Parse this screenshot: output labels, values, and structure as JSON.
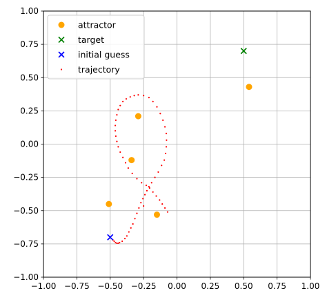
{
  "chart_data": {
    "type": "scatter",
    "title": "",
    "xlabel": "",
    "ylabel": "",
    "xlim": [
      -1.0,
      1.0
    ],
    "ylim": [
      -1.0,
      1.0
    ],
    "xticks": [
      -1.0,
      -0.75,
      -0.5,
      -0.25,
      0.0,
      0.25,
      0.5,
      0.75,
      1.0
    ],
    "yticks": [
      -1.0,
      -0.75,
      -0.5,
      -0.25,
      0.0,
      0.25,
      0.5,
      0.75,
      1.0
    ],
    "xtick_labels": [
      "−1.00",
      "−0.75",
      "−0.50",
      "−0.25",
      "0.00",
      "0.25",
      "0.50",
      "0.75",
      "1.00"
    ],
    "ytick_labels": [
      "−1.00",
      "−0.75",
      "−0.50",
      "−0.25",
      "0.00",
      "0.25",
      "0.50",
      "0.75",
      "1.00"
    ],
    "grid": true,
    "legend_position": "top-left",
    "series": [
      {
        "name": "attractor",
        "marker": "circle",
        "color": "#FFA500",
        "points": [
          [
            -0.29,
            0.21
          ],
          [
            -0.34,
            -0.12
          ],
          [
            -0.51,
            -0.45
          ],
          [
            -0.15,
            -0.53
          ],
          [
            0.54,
            0.43
          ]
        ]
      },
      {
        "name": "target",
        "marker": "x",
        "color": "#008000",
        "points": [
          [
            0.5,
            0.7
          ]
        ]
      },
      {
        "name": "initial guess",
        "marker": "x",
        "color": "#0000FF",
        "points": [
          [
            -0.5,
            -0.7
          ]
        ]
      },
      {
        "name": "trajectory",
        "marker": "dot",
        "color": "#FF0000",
        "points": [
          [
            -0.48,
            -0.72
          ],
          [
            -0.47,
            -0.73
          ],
          [
            -0.46,
            -0.74
          ],
          [
            -0.45,
            -0.745
          ],
          [
            -0.44,
            -0.745
          ],
          [
            -0.43,
            -0.74
          ],
          [
            -0.41,
            -0.73
          ],
          [
            -0.39,
            -0.71
          ],
          [
            -0.375,
            -0.69
          ],
          [
            -0.36,
            -0.66
          ],
          [
            -0.345,
            -0.63
          ],
          [
            -0.33,
            -0.6
          ],
          [
            -0.315,
            -0.56
          ],
          [
            -0.3,
            -0.52
          ],
          [
            -0.285,
            -0.48
          ],
          [
            -0.27,
            -0.44
          ],
          [
            -0.255,
            -0.41
          ],
          [
            -0.24,
            -0.38
          ],
          [
            -0.225,
            -0.35
          ],
          [
            -0.21,
            -0.32
          ],
          [
            -0.19,
            -0.29
          ],
          [
            -0.165,
            -0.25
          ],
          [
            -0.14,
            -0.21
          ],
          [
            -0.115,
            -0.16
          ],
          [
            -0.095,
            -0.12
          ],
          [
            -0.085,
            -0.07
          ],
          [
            -0.08,
            -0.02
          ],
          [
            -0.078,
            0.03
          ],
          [
            -0.08,
            0.08
          ],
          [
            -0.09,
            0.13
          ],
          [
            -0.105,
            0.18
          ],
          [
            -0.125,
            0.23
          ],
          [
            -0.15,
            0.28
          ],
          [
            -0.18,
            0.32
          ],
          [
            -0.21,
            0.35
          ],
          [
            -0.25,
            0.365
          ],
          [
            -0.29,
            0.37
          ],
          [
            -0.32,
            0.365
          ],
          [
            -0.35,
            0.355
          ],
          [
            -0.38,
            0.34
          ],
          [
            -0.405,
            0.32
          ],
          [
            -0.425,
            0.29
          ],
          [
            -0.44,
            0.26
          ],
          [
            -0.45,
            0.22
          ],
          [
            -0.458,
            0.18
          ],
          [
            -0.462,
            0.14
          ],
          [
            -0.462,
            0.1
          ],
          [
            -0.458,
            0.06
          ],
          [
            -0.45,
            0.02
          ],
          [
            -0.44,
            -0.02
          ],
          [
            -0.425,
            -0.06
          ],
          [
            -0.405,
            -0.1
          ],
          [
            -0.385,
            -0.14
          ],
          [
            -0.365,
            -0.18
          ],
          [
            -0.335,
            -0.22
          ],
          [
            -0.3,
            -0.26
          ],
          [
            -0.265,
            -0.29
          ],
          [
            -0.23,
            -0.31
          ],
          [
            -0.205,
            -0.33
          ],
          [
            -0.18,
            -0.36
          ],
          [
            -0.155,
            -0.39
          ],
          [
            -0.13,
            -0.42
          ],
          [
            -0.11,
            -0.45
          ],
          [
            -0.09,
            -0.48
          ],
          [
            -0.07,
            -0.51
          ],
          [
            -0.25,
            -0.465
          ]
        ]
      }
    ]
  }
}
